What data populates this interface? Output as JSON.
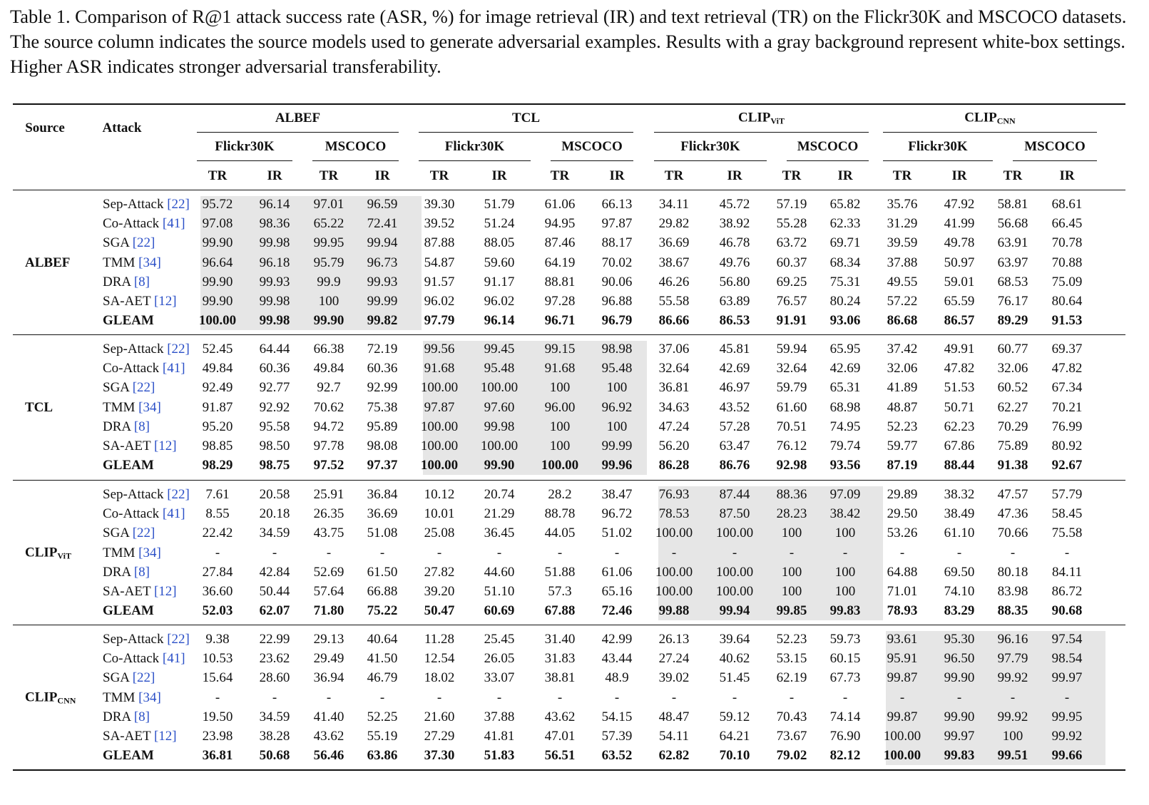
{
  "caption": "Table 1. Comparison of R@1 attack success rate (ASR, %) for image retrieval (IR) and text retrieval (TR) on the Flickr30K and MSCOCO datasets. The source column indicates the source models used to generate adversarial examples. Results with a gray background represent white-box settings. Higher ASR indicates stronger adversarial transferability.",
  "headers": {
    "source": "Source",
    "attack": "Attack",
    "models": [
      {
        "name": "ALBEF",
        "sub": ""
      },
      {
        "name": "TCL",
        "sub": ""
      },
      {
        "name": "CLIP",
        "sub": "ViT"
      },
      {
        "name": "CLIP",
        "sub": "CNN"
      }
    ],
    "datasets": [
      "Flickr30K",
      "MSCOCO"
    ],
    "metrics": [
      "TR",
      "IR"
    ]
  },
  "attacks": [
    {
      "name": "Sep-Attack",
      "ref": "[22]"
    },
    {
      "name": "Co-Attack",
      "ref": "[41]"
    },
    {
      "name": "SGA",
      "ref": "[22]"
    },
    {
      "name": "TMM",
      "ref": "[34]"
    },
    {
      "name": "DRA",
      "ref": "[8]"
    },
    {
      "name": "SA-AET",
      "ref": "[12]"
    },
    {
      "name": "GLEAM",
      "ref": ""
    }
  ],
  "groups": [
    {
      "source": "ALBEF",
      "source_sub": "",
      "whitebox_model": 0,
      "rows": [
        [
          "95.72",
          "96.14",
          "97.01",
          "96.59",
          "39.30",
          "51.79",
          "61.06",
          "66.13",
          "34.11",
          "45.72",
          "57.19",
          "65.82",
          "35.76",
          "47.92",
          "58.81",
          "68.61"
        ],
        [
          "97.08",
          "98.36",
          "65.22",
          "72.41",
          "39.52",
          "51.24",
          "94.95",
          "97.87",
          "29.82",
          "38.92",
          "55.28",
          "62.33",
          "31.29",
          "41.99",
          "56.68",
          "66.45"
        ],
        [
          "99.90",
          "99.98",
          "99.95",
          "99.94",
          "87.88",
          "88.05",
          "87.46",
          "88.17",
          "36.69",
          "46.78",
          "63.72",
          "69.71",
          "39.59",
          "49.78",
          "63.91",
          "70.78"
        ],
        [
          "96.64",
          "96.18",
          "95.79",
          "96.73",
          "54.87",
          "59.60",
          "64.19",
          "70.02",
          "38.67",
          "49.76",
          "60.37",
          "68.34",
          "37.88",
          "50.97",
          "63.97",
          "70.88"
        ],
        [
          "99.90",
          "99.93",
          "99.9",
          "99.93",
          "91.57",
          "91.17",
          "88.81",
          "90.06",
          "46.26",
          "56.80",
          "69.25",
          "75.31",
          "49.55",
          "59.01",
          "68.53",
          "75.09"
        ],
        [
          "99.90",
          "99.98",
          "100",
          "99.99",
          "96.02",
          "96.02",
          "97.28",
          "96.88",
          "55.58",
          "63.89",
          "76.57",
          "80.24",
          "57.22",
          "65.59",
          "76.17",
          "80.64"
        ],
        [
          "100.00",
          "99.98",
          "99.90",
          "99.82",
          "97.79",
          "96.14",
          "96.71",
          "96.79",
          "86.66",
          "86.53",
          "91.91",
          "93.06",
          "86.68",
          "86.57",
          "89.29",
          "91.53"
        ]
      ]
    },
    {
      "source": "TCL",
      "source_sub": "",
      "whitebox_model": 1,
      "rows": [
        [
          "52.45",
          "64.44",
          "66.38",
          "72.19",
          "99.56",
          "99.45",
          "99.15",
          "98.98",
          "37.06",
          "45.81",
          "59.94",
          "65.95",
          "37.42",
          "49.91",
          "60.77",
          "69.37"
        ],
        [
          "49.84",
          "60.36",
          "49.84",
          "60.36",
          "91.68",
          "95.48",
          "91.68",
          "95.48",
          "32.64",
          "42.69",
          "32.64",
          "42.69",
          "32.06",
          "47.82",
          "32.06",
          "47.82"
        ],
        [
          "92.49",
          "92.77",
          "92.7",
          "92.99",
          "100.00",
          "100.00",
          "100",
          "100",
          "36.81",
          "46.97",
          "59.79",
          "65.31",
          "41.89",
          "51.53",
          "60.52",
          "67.34"
        ],
        [
          "91.87",
          "92.92",
          "70.62",
          "75.38",
          "97.87",
          "97.60",
          "96.00",
          "96.92",
          "34.63",
          "43.52",
          "61.60",
          "68.98",
          "48.87",
          "50.71",
          "62.27",
          "70.21"
        ],
        [
          "95.20",
          "95.58",
          "94.72",
          "95.89",
          "100.00",
          "99.98",
          "100",
          "100",
          "47.24",
          "57.28",
          "70.51",
          "74.95",
          "52.23",
          "62.23",
          "70.29",
          "76.99"
        ],
        [
          "98.85",
          "98.50",
          "97.78",
          "98.08",
          "100.00",
          "100.00",
          "100",
          "99.99",
          "56.20",
          "63.47",
          "76.12",
          "79.74",
          "59.77",
          "67.86",
          "75.89",
          "80.92"
        ],
        [
          "98.29",
          "98.75",
          "97.52",
          "97.37",
          "100.00",
          "99.90",
          "100.00",
          "99.96",
          "86.28",
          "86.76",
          "92.98",
          "93.56",
          "87.19",
          "88.44",
          "91.38",
          "92.67"
        ]
      ]
    },
    {
      "source": "CLIP",
      "source_sub": "ViT",
      "whitebox_model": 2,
      "rows": [
        [
          "7.61",
          "20.58",
          "25.91",
          "36.84",
          "10.12",
          "20.74",
          "28.2",
          "38.47",
          "76.93",
          "87.44",
          "88.36",
          "97.09",
          "29.89",
          "38.32",
          "47.57",
          "57.79"
        ],
        [
          "8.55",
          "20.18",
          "26.35",
          "36.69",
          "10.01",
          "21.29",
          "88.78",
          "96.72",
          "78.53",
          "87.50",
          "28.23",
          "38.42",
          "29.50",
          "38.49",
          "47.36",
          "58.45"
        ],
        [
          "22.42",
          "34.59",
          "43.75",
          "51.08",
          "25.08",
          "36.45",
          "44.05",
          "51.02",
          "100.00",
          "100.00",
          "100",
          "100",
          "53.26",
          "61.10",
          "70.66",
          "75.58"
        ],
        [
          "-",
          "-",
          "-",
          "-",
          "-",
          "-",
          "-",
          "-",
          "-",
          "-",
          "-",
          "-",
          "-",
          "-",
          "-",
          "-"
        ],
        [
          "27.84",
          "42.84",
          "52.69",
          "61.50",
          "27.82",
          "44.60",
          "51.88",
          "61.06",
          "100.00",
          "100.00",
          "100",
          "100",
          "64.88",
          "69.50",
          "80.18",
          "84.11"
        ],
        [
          "36.60",
          "50.44",
          "57.64",
          "66.88",
          "39.20",
          "51.10",
          "57.3",
          "65.16",
          "100.00",
          "100.00",
          "100",
          "100",
          "71.01",
          "74.10",
          "83.98",
          "86.72"
        ],
        [
          "52.03",
          "62.07",
          "71.80",
          "75.22",
          "50.47",
          "60.69",
          "67.88",
          "72.46",
          "99.88",
          "99.94",
          "99.85",
          "99.83",
          "78.93",
          "83.29",
          "88.35",
          "90.68"
        ]
      ]
    },
    {
      "source": "CLIP",
      "source_sub": "CNN",
      "whitebox_model": 3,
      "rows": [
        [
          "9.38",
          "22.99",
          "29.13",
          "40.64",
          "11.28",
          "25.45",
          "31.40",
          "42.99",
          "26.13",
          "39.64",
          "52.23",
          "59.73",
          "93.61",
          "95.30",
          "96.16",
          "97.54"
        ],
        [
          "10.53",
          "23.62",
          "29.49",
          "41.50",
          "12.54",
          "26.05",
          "31.83",
          "43.44",
          "27.24",
          "40.62",
          "53.15",
          "60.15",
          "95.91",
          "96.50",
          "97.79",
          "98.54"
        ],
        [
          "15.64",
          "28.60",
          "36.94",
          "46.79",
          "18.02",
          "33.07",
          "38.81",
          "48.9",
          "39.02",
          "51.45",
          "62.19",
          "67.73",
          "99.87",
          "99.90",
          "99.92",
          "99.97"
        ],
        [
          "-",
          "-",
          "-",
          "-",
          "-",
          "-",
          "-",
          "-",
          "-",
          "-",
          "-",
          "-",
          "-",
          "-",
          "-",
          "-"
        ],
        [
          "19.50",
          "34.59",
          "41.40",
          "52.25",
          "21.60",
          "37.88",
          "43.62",
          "54.15",
          "48.47",
          "59.12",
          "70.43",
          "74.14",
          "99.87",
          "99.90",
          "99.92",
          "99.95"
        ],
        [
          "23.98",
          "38.28",
          "43.62",
          "55.19",
          "27.29",
          "41.81",
          "47.01",
          "57.39",
          "54.11",
          "64.21",
          "73.67",
          "76.90",
          "100.00",
          "99.97",
          "100",
          "99.92"
        ],
        [
          "36.81",
          "50.68",
          "56.46",
          "63.86",
          "37.30",
          "51.83",
          "56.51",
          "63.52",
          "62.82",
          "70.10",
          "79.02",
          "82.12",
          "100.00",
          "99.83",
          "99.51",
          "99.66"
        ]
      ]
    }
  ]
}
